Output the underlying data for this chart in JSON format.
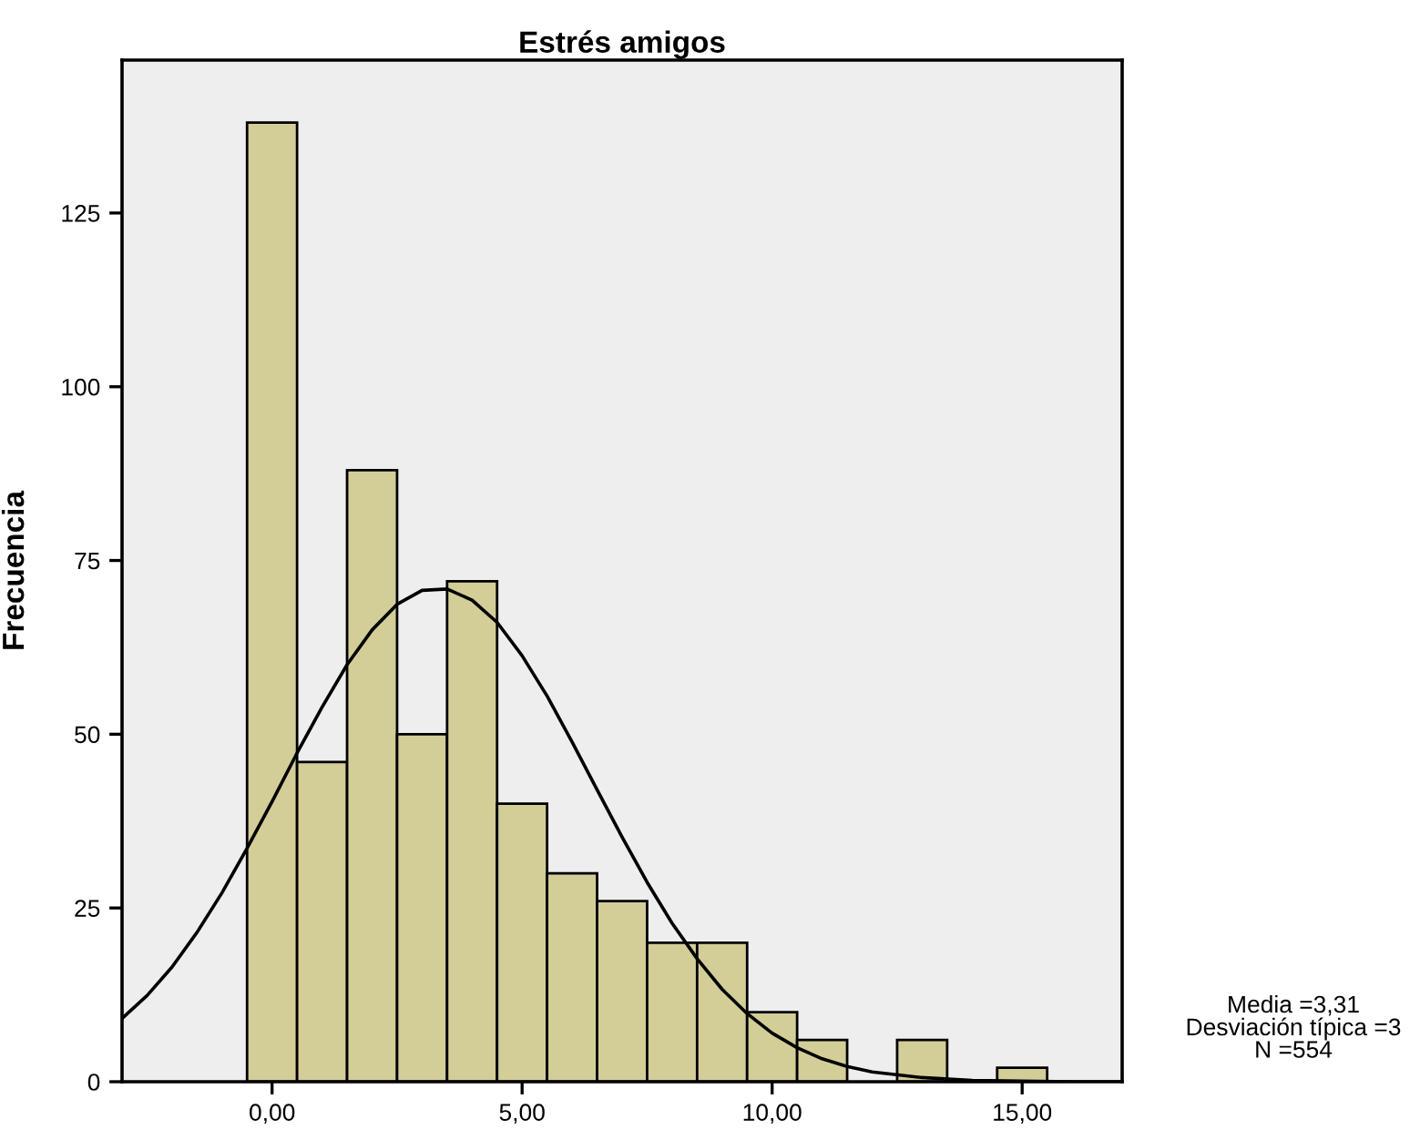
{
  "chart_data": {
    "type": "histogram",
    "title": "Estrés amigos",
    "ylabel": "Frecuencia",
    "bins": [
      -0.5,
      0.5,
      1.5,
      2.5,
      3.5,
      4.5,
      5.5,
      6.5,
      7.5,
      8.5,
      9.5,
      10.5,
      11.5,
      12.5,
      13.5,
      14.5,
      15.5
    ],
    "values": [
      138,
      46,
      88,
      50,
      72,
      40,
      30,
      26,
      20,
      20,
      10,
      6,
      0,
      6,
      0,
      2
    ],
    "color": "#d3ce97",
    "series": [
      {
        "type": "line",
        "color": "#000000",
        "x": [
          -3,
          -2.5,
          -2,
          -1.5,
          -1,
          -0.5,
          0,
          0.5,
          1,
          1.5,
          2,
          2.5,
          3,
          3.5,
          4,
          4.5,
          5,
          5.5,
          6,
          6.5,
          7,
          7.5,
          8,
          8.5,
          9,
          9.5,
          10,
          10.5,
          11,
          11.5,
          12,
          13,
          14,
          15,
          16,
          17
        ],
        "values": [
          9.1,
          12.4,
          16.5,
          21.5,
          27.2,
          33.6,
          40.3,
          47.3,
          53.9,
          60.0,
          65.0,
          68.7,
          70.7,
          70.9,
          69.3,
          66.1,
          61.3,
          55.5,
          48.9,
          42.0,
          35.2,
          28.7,
          22.8,
          17.7,
          13.3,
          9.8,
          7.0,
          4.9,
          3.3,
          2.2,
          1.4,
          0.6,
          0.2,
          0.1,
          0.0,
          0.0
        ]
      }
    ],
    "xlim": [
      -3,
      17
    ],
    "ylim": [
      0,
      147
    ],
    "xticks": [
      {
        "value": 0,
        "label": "0,00"
      },
      {
        "value": 5,
        "label": "5,00"
      },
      {
        "value": 10,
        "label": "10,00"
      },
      {
        "value": 15,
        "label": "15,00"
      }
    ],
    "yticks": [
      0,
      25,
      50,
      75,
      100,
      125
    ],
    "annotations": [
      "Media =3,31",
      "Desviación típica =3",
      "N =554"
    ],
    "grid": false,
    "legend": false,
    "marker": "none",
    "line_style": "solid"
  }
}
